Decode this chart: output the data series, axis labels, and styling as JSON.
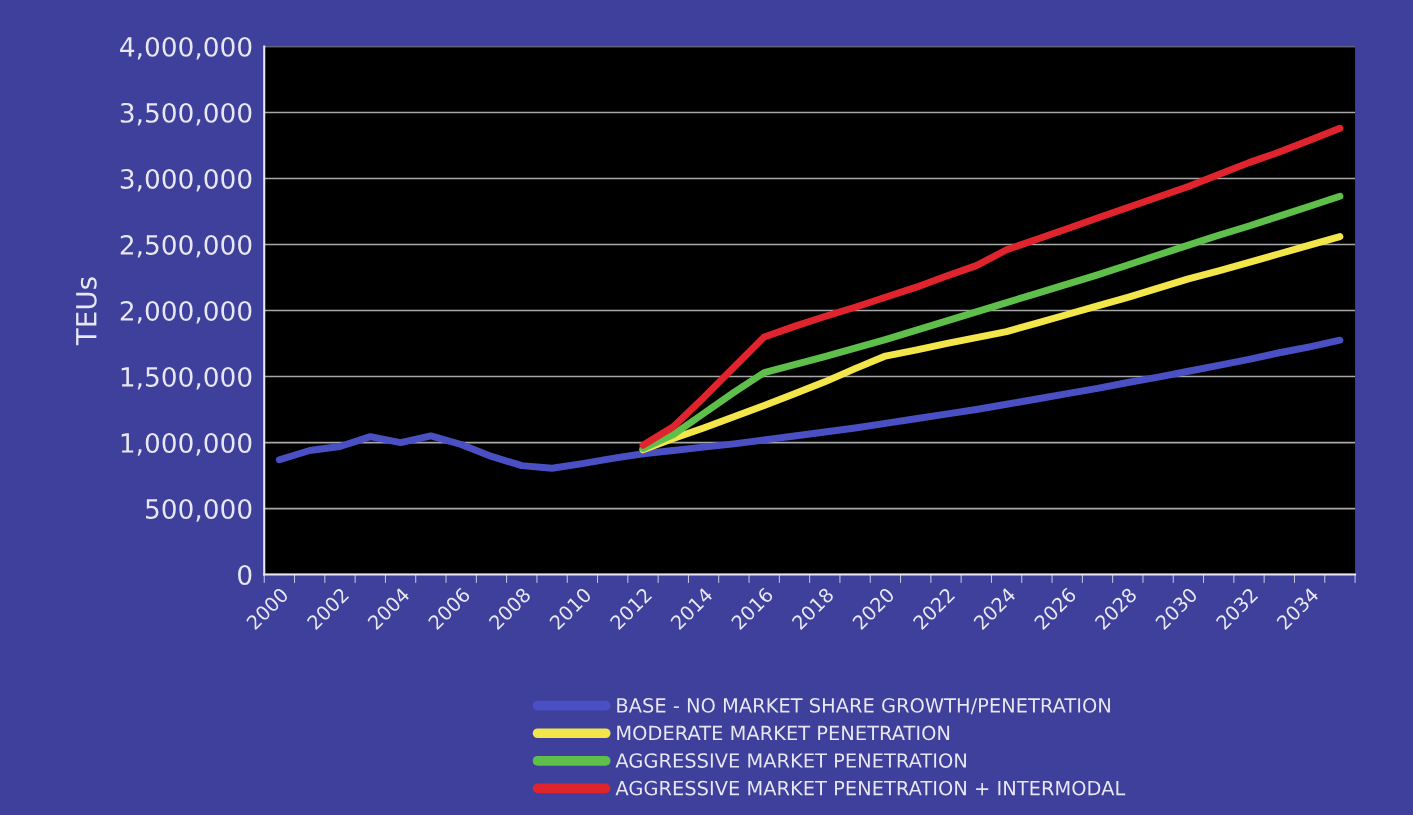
{
  "chart_data": {
    "type": "line",
    "ylabel": "TEUs",
    "categories": [
      "2000",
      null,
      "2002",
      null,
      "2004",
      null,
      "2006",
      null,
      "2008",
      null,
      "2010",
      null,
      "2012",
      null,
      "2014",
      null,
      "2016",
      null,
      "2018",
      null,
      "2020",
      null,
      "2022",
      null,
      "2024",
      null,
      "2026",
      null,
      "2028",
      null,
      "2030",
      null,
      "2032",
      null,
      "2034",
      null
    ],
    "series": [
      {
        "name": "BASE - NO MARKET SHARE GROWTH/PENETRATION",
        "color": "#4a50c4",
        "values": [
          870000,
          940000,
          970000,
          1045000,
          1000000,
          1050000,
          985000,
          895000,
          825000,
          805000,
          840000,
          880000,
          915000,
          940000,
          965000,
          990000,
          1020000,
          1050000,
          1080000,
          1110000,
          1145000,
          1180000,
          1215000,
          1250000,
          1290000,
          1330000,
          1370000,
          1410000,
          1455000,
          1495000,
          1540000,
          1585000,
          1630000,
          1680000,
          1725000,
          1775000
        ]
      },
      {
        "name": "MODERATE MARKET PENETRATION",
        "color": "#f2e64a",
        "values": [
          null,
          null,
          null,
          null,
          null,
          null,
          null,
          null,
          null,
          null,
          null,
          null,
          945000,
          1030000,
          1110000,
          1195000,
          1280000,
          1370000,
          1460000,
          1560000,
          1655000,
          1700000,
          1750000,
          1795000,
          1840000,
          1905000,
          1970000,
          2035000,
          2100000,
          2170000,
          2240000,
          2300000,
          2365000,
          2430000,
          2495000,
          2560000
        ]
      },
      {
        "name": "AGGRESSIVE MARKET PENETRATION",
        "color": "#5ec04a",
        "values": [
          null,
          null,
          null,
          null,
          null,
          null,
          null,
          null,
          null,
          null,
          null,
          null,
          955000,
          1060000,
          1220000,
          1380000,
          1530000,
          1590000,
          1650000,
          1715000,
          1780000,
          1850000,
          1920000,
          1990000,
          2060000,
          2130000,
          2200000,
          2270000,
          2345000,
          2420000,
          2495000,
          2570000,
          2640000,
          2715000,
          2790000,
          2865000
        ]
      },
      {
        "name": "AGGRESSIVE MARKET PENETRATION + INTERMODAL",
        "color": "#e0242e",
        "values": [
          null,
          null,
          null,
          null,
          null,
          null,
          null,
          null,
          null,
          null,
          null,
          null,
          980000,
          1120000,
          1340000,
          1570000,
          1800000,
          1880000,
          1955000,
          2025000,
          2100000,
          2175000,
          2260000,
          2340000,
          2460000,
          2540000,
          2620000,
          2700000,
          2780000,
          2860000,
          2940000,
          3030000,
          3120000,
          3200000,
          3290000,
          3380000
        ]
      }
    ],
    "ylim": [
      0,
      4000000
    ],
    "yticks": [
      {
        "value": 0,
        "label": "0"
      },
      {
        "value": 500000,
        "label": "500,000"
      },
      {
        "value": 1000000,
        "label": "1,000,000"
      },
      {
        "value": 1500000,
        "label": "1,500,000"
      },
      {
        "value": 2000000,
        "label": "2,000,000"
      },
      {
        "value": 2500000,
        "label": "2,500,000"
      },
      {
        "value": 3000000,
        "label": "3,000,000"
      },
      {
        "value": 3500000,
        "label": "3,500,000"
      },
      {
        "value": 4000000,
        "label": "4,000,000"
      }
    ],
    "grid": "y",
    "legend": "bottom",
    "marker": "none",
    "line_style": "solid"
  }
}
